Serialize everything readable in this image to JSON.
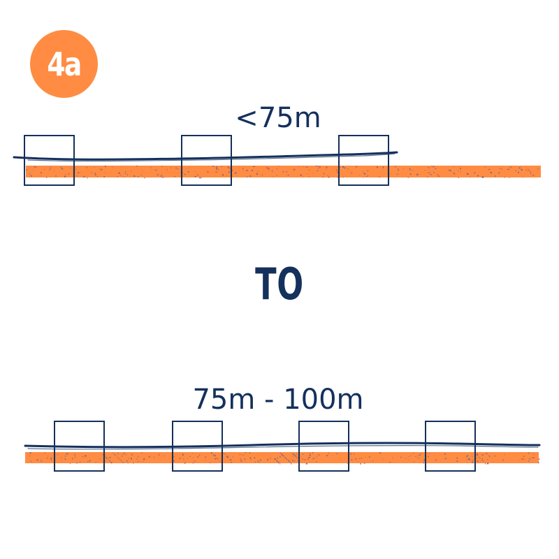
{
  "badge": {
    "label": "4a",
    "color": "#ff8c42"
  },
  "colors": {
    "navy": "#14305c",
    "orange": "#ff8c42"
  },
  "top_layout": {
    "spacing_label": "<75m",
    "post_count": 3
  },
  "connector": {
    "label": "TO"
  },
  "bottom_layout": {
    "spacing_label": "75m - 100m",
    "post_count": 4
  }
}
